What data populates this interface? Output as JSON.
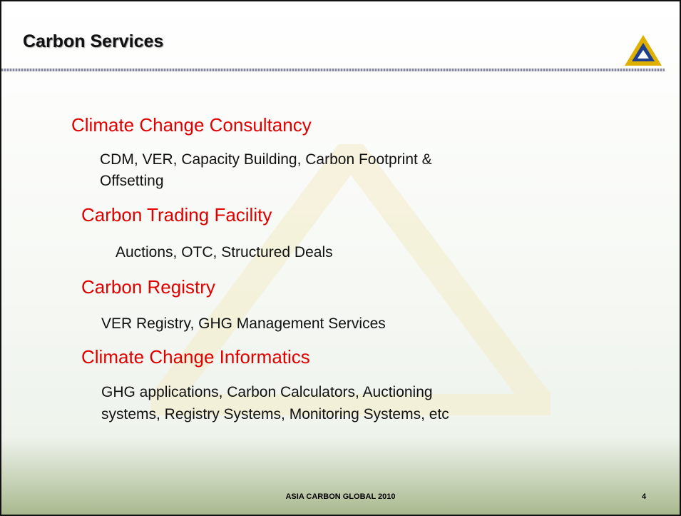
{
  "header": {
    "title": "Carbon Services"
  },
  "sections": [
    {
      "heading": "Climate Change Consultancy",
      "lines": [
        "CDM, VER, Capacity Building, Carbon Footprint &",
        "Offsetting"
      ]
    },
    {
      "heading": "Carbon Trading Facility",
      "lines": [
        "Auctions, OTC, Structured Deals"
      ]
    },
    {
      "heading": "Carbon Registry",
      "lines": [
        "VER Registry, GHG Management Services"
      ]
    },
    {
      "heading": "Climate Change Informatics",
      "lines": [
        "GHG applications, Carbon Calculators, Auctioning",
        "systems, Registry Systems, Monitoring Systems, etc"
      ]
    }
  ],
  "footer": {
    "text": "ASIA CARBON GLOBAL 2010",
    "page": "4"
  }
}
